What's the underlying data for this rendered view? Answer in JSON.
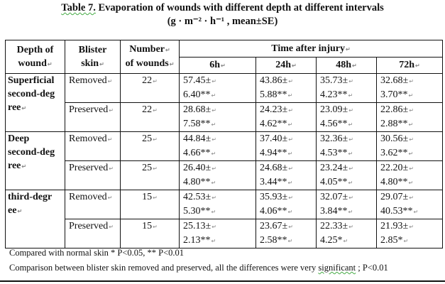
{
  "title": {
    "label": "Table 7.",
    "text": "Evaporation of wounds with different depth at different intervals",
    "units": "(g · m⁻² · h⁻¹ , mean±SE)"
  },
  "headers": {
    "depth_1": "Depth of",
    "depth_2": "wound",
    "blister_1": "Blister",
    "blister_2": "skin",
    "number_1": "Number",
    "number_2": "of wounds",
    "time": "Time after injury",
    "intervals": [
      "6h",
      "24h",
      "48h",
      "72h"
    ]
  },
  "groups": [
    {
      "depth": [
        "Superficial",
        "second-deg",
        "ree"
      ],
      "rows": [
        {
          "skin": "Removed",
          "n": "22",
          "values": [
            [
              "57.45±",
              "6.40**"
            ],
            [
              "43.86±",
              "5.88**"
            ],
            [
              "35.73±",
              "4.23**"
            ],
            [
              "32.68±",
              "3.70**"
            ]
          ]
        },
        {
          "skin": "Preserved",
          "n": "22",
          "values": [
            [
              "28.68±",
              "7.58**"
            ],
            [
              "24.23±",
              "4.62**"
            ],
            [
              "23.09±",
              "4.56**"
            ],
            [
              "22.86±",
              "2.88**"
            ]
          ]
        }
      ]
    },
    {
      "depth": [
        "Deep",
        "second-deg",
        "ree"
      ],
      "rows": [
        {
          "skin": "Removed",
          "n": "25",
          "values": [
            [
              "44.84±",
              "4.66**"
            ],
            [
              "37.40±",
              "4.94**"
            ],
            [
              "32.36±",
              "4.53**"
            ],
            [
              "30.56±",
              "3.62**"
            ]
          ]
        },
        {
          "skin": "Preserved",
          "n": "25",
          "values": [
            [
              "26.40±",
              "4.80**"
            ],
            [
              "24.68±",
              "3.44**"
            ],
            [
              "23.24±",
              "4.05**"
            ],
            [
              "22.20±",
              "4.80**"
            ]
          ]
        }
      ]
    },
    {
      "depth": [
        "third-degr",
        "ee"
      ],
      "rows": [
        {
          "skin": "Removed",
          "n": "15",
          "values": [
            [
              "42.53±",
              "5.30**"
            ],
            [
              "35.93±",
              "4.06**"
            ],
            [
              "32.07±",
              "3.84**"
            ],
            [
              "29.07±",
              "40.53**"
            ]
          ]
        },
        {
          "skin": "Preserved",
          "n": "15",
          "values": [
            [
              "25.13±",
              "2.13**"
            ],
            [
              "23.67±",
              "2.58**"
            ],
            [
              "22.33±",
              "4.25*"
            ],
            [
              "21.93±",
              "2.85*"
            ]
          ]
        }
      ]
    }
  ],
  "footnotes": {
    "note1": "Compared with normal skin * P<0.05, ** P<0.01",
    "note2_a": "Comparison between blister skin removed and preserved, all the differences were  very ",
    "note2_sig": "significant",
    "note2_b": " ; P<0.01"
  }
}
